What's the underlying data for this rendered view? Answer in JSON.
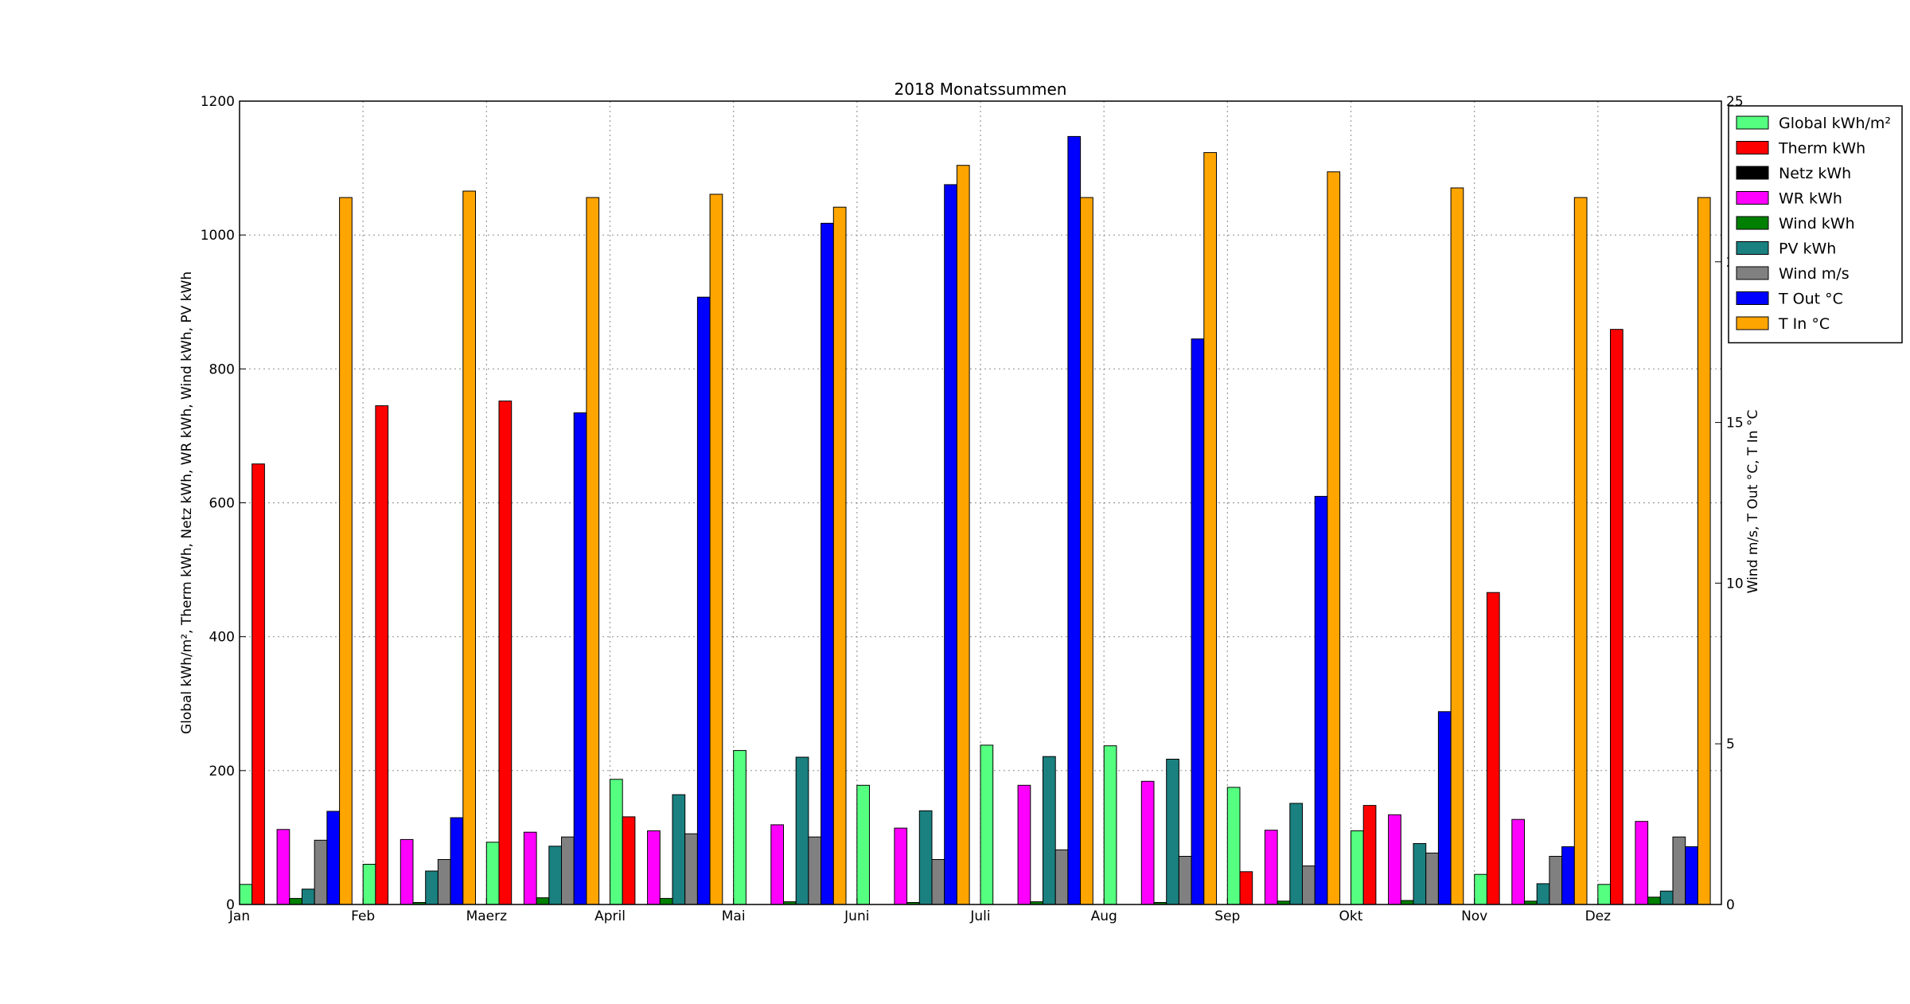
{
  "chart_data": {
    "type": "bar",
    "title": "2018 Monatssummen",
    "ylabel": "Global kWh/m², Therm kWh, Netz kWh, WR kWh, Wind kWh, PV kWh",
    "y2label": "Wind m/s, T Out °C, T In °C",
    "ylim": [
      0,
      1200
    ],
    "y2lim": [
      0,
      25
    ],
    "yticks": [
      "0",
      "200",
      "400",
      "600",
      "800",
      "1000",
      "1200"
    ],
    "y2ticks": [
      "0",
      "5",
      "10",
      "15",
      "20",
      "25"
    ],
    "grid": true,
    "legend_position": "top-right",
    "categories": [
      "Jan",
      "Feb",
      "Maerz",
      "April",
      "Mai",
      "Juni",
      "Juli",
      "Aug",
      "Sep",
      "Okt",
      "Nov",
      "Dez"
    ],
    "series": [
      {
        "name": "Global kWh/m²",
        "axis": "left",
        "color": "#55ff80",
        "values": [
          30,
          60,
          93,
          187,
          230,
          178,
          238,
          237,
          175,
          110,
          45,
          30
        ]
      },
      {
        "name": "Therm kWh",
        "axis": "left",
        "color": "#ff0000",
        "values": [
          658,
          745,
          752,
          131,
          0,
          0,
          0,
          0,
          49,
          148,
          466,
          859
        ]
      },
      {
        "name": "Netz kWh",
        "axis": "left",
        "color": "#000000",
        "values": [
          0,
          0,
          0,
          0,
          0,
          0,
          0,
          0,
          0,
          0,
          0,
          0
        ]
      },
      {
        "name": "WR kWh",
        "axis": "left",
        "color": "#ff00ff",
        "values": [
          112,
          97,
          108,
          110,
          119,
          114,
          178,
          184,
          111,
          134,
          127,
          124
        ]
      },
      {
        "name": "Wind kWh",
        "axis": "left",
        "color": "#008000",
        "values": [
          9,
          3,
          10,
          9,
          4,
          3,
          4,
          3,
          5,
          6,
          5,
          11
        ]
      },
      {
        "name": "PV kWh",
        "axis": "left",
        "color": "#1a8080",
        "values": [
          23,
          50,
          87,
          164,
          220,
          140,
          221,
          217,
          151,
          91,
          31,
          20
        ]
      },
      {
        "name": "Wind m/s",
        "axis": "right",
        "color": "#808080",
        "values": [
          2.0,
          1.4,
          2.1,
          2.2,
          2.1,
          1.4,
          1.7,
          1.5,
          1.2,
          1.6,
          1.5,
          2.1
        ]
      },
      {
        "name": "T Out °C",
        "axis": "right",
        "color": "#0000ff",
        "values": [
          2.9,
          2.7,
          15.3,
          18.9,
          21.2,
          22.4,
          23.9,
          17.6,
          12.7,
          6.0,
          1.8,
          1.8
        ]
      },
      {
        "name": "T In °C",
        "axis": "right",
        "color": "#ffa500",
        "values": [
          22.0,
          22.2,
          22.0,
          22.1,
          21.7,
          23.0,
          22.0,
          23.4,
          22.8,
          22.3,
          22.0,
          22.0
        ]
      }
    ]
  }
}
